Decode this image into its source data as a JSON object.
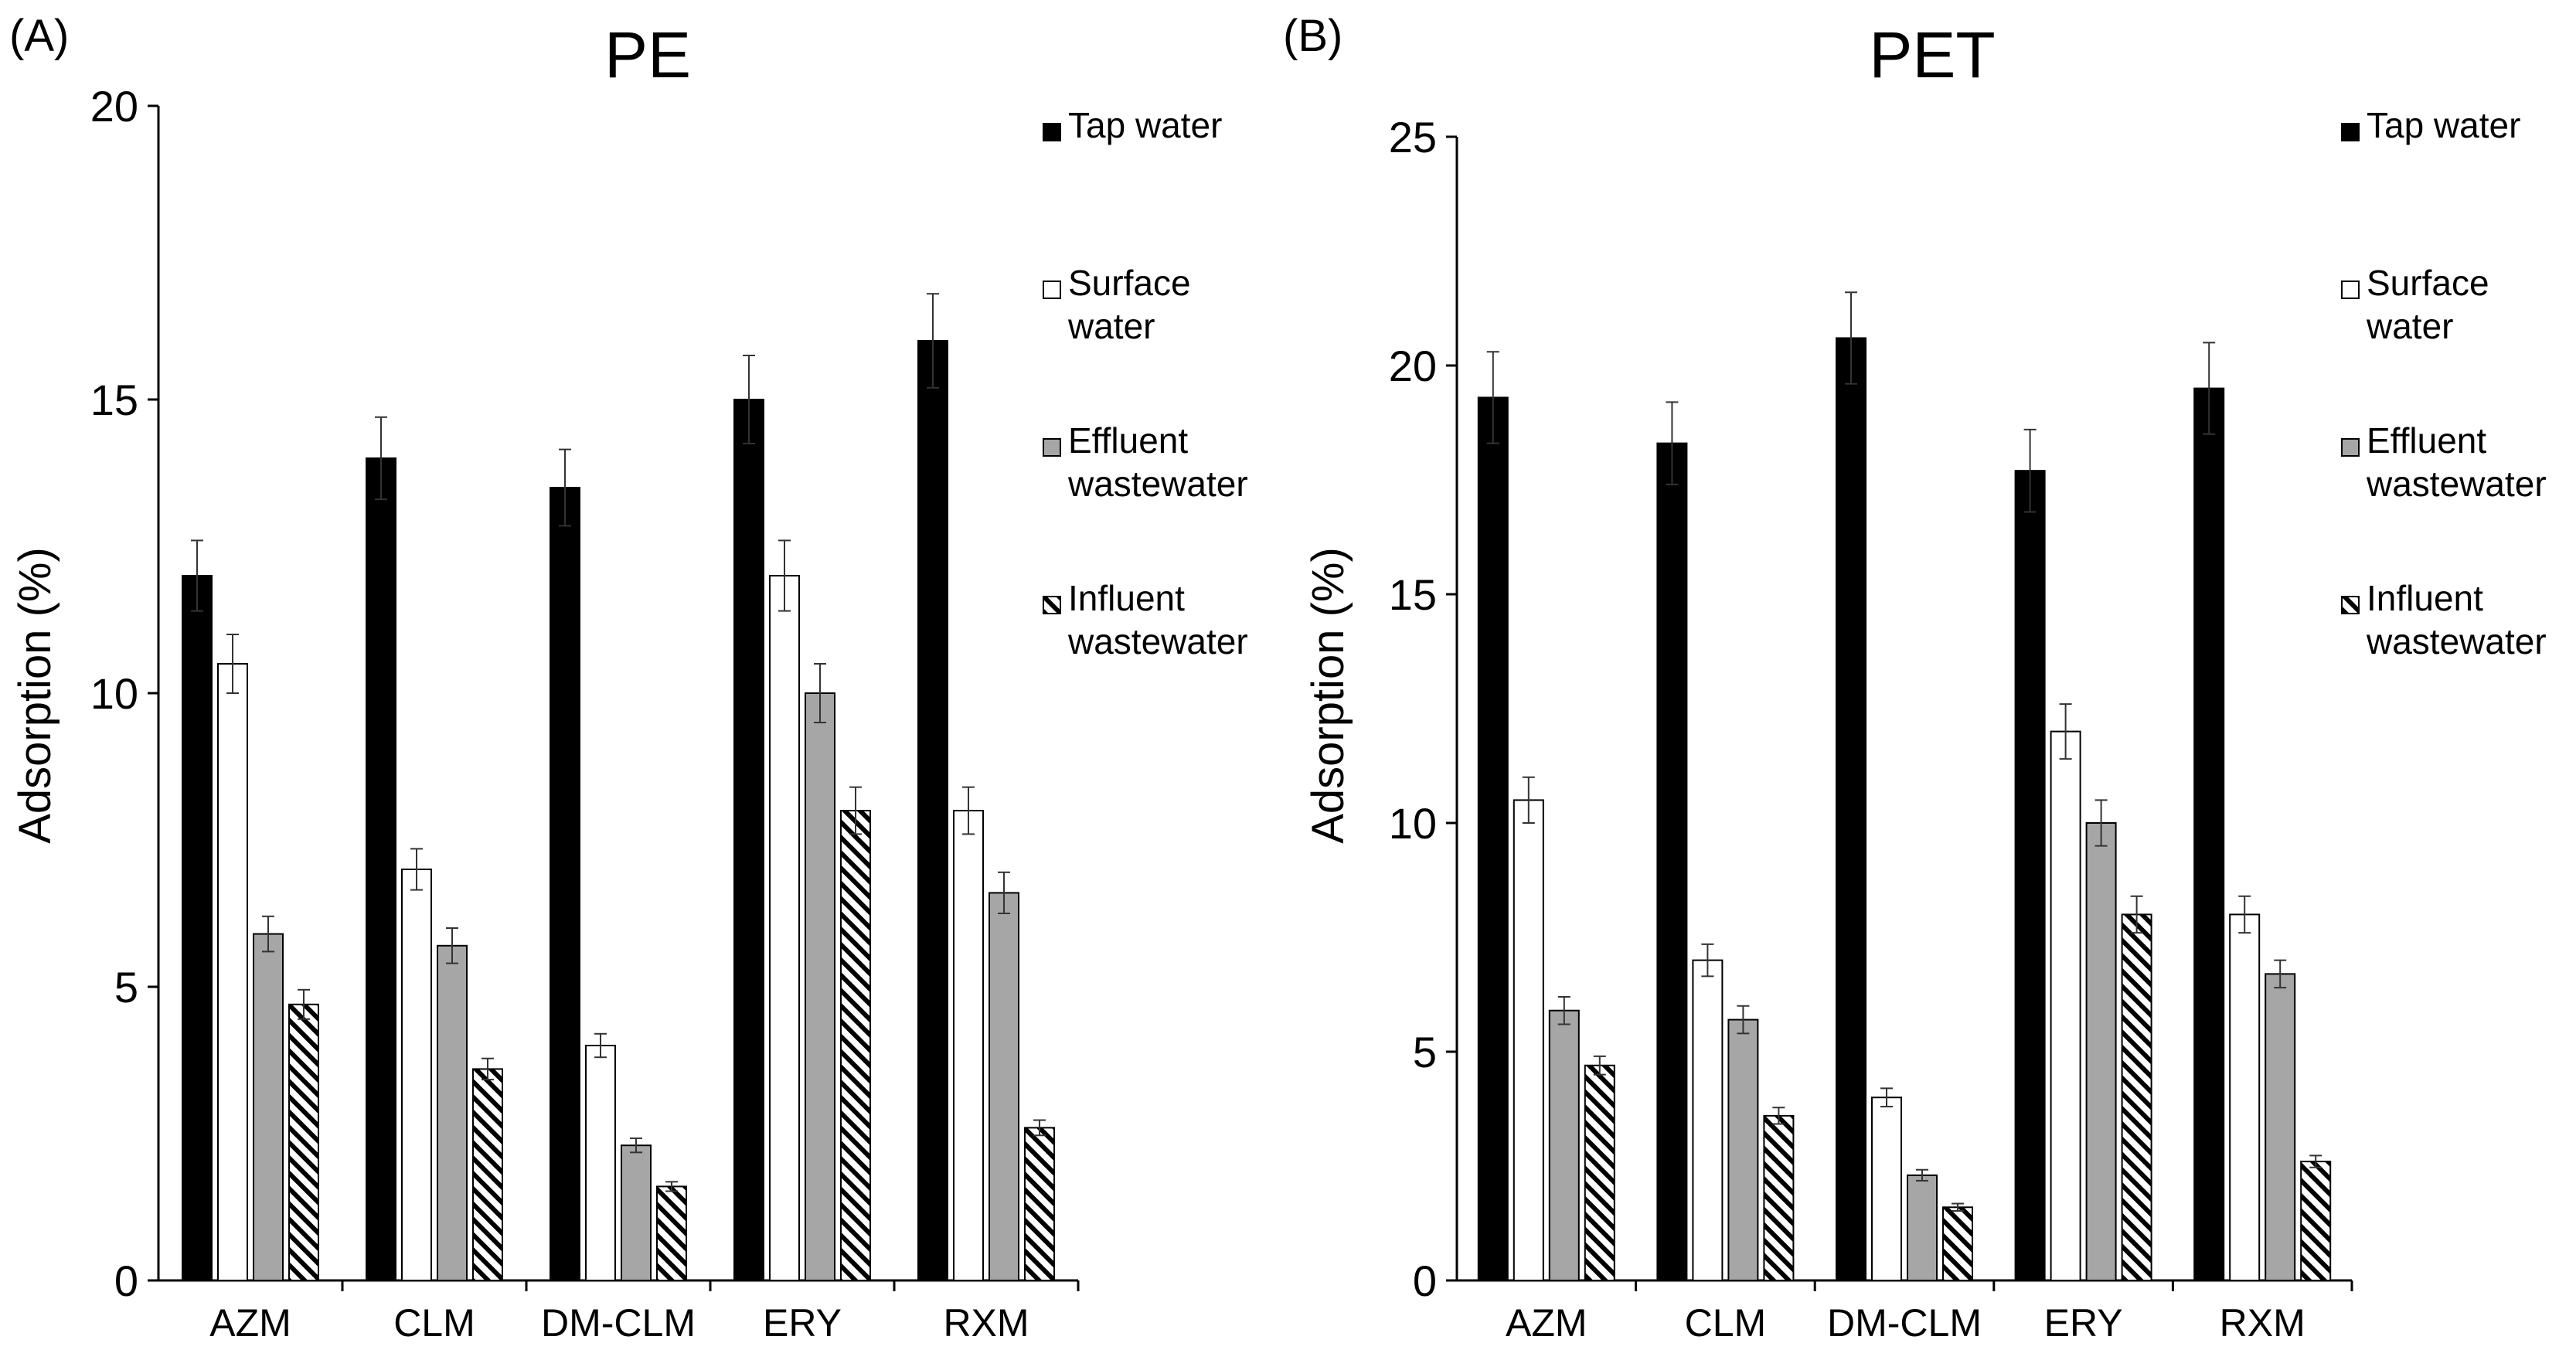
{
  "figure": {
    "background": "#ffffff"
  },
  "series_styles": [
    {
      "name": "Tap water",
      "legend_lines": [
        "Tap water"
      ],
      "fill": "#000000",
      "stroke": "#000000",
      "pattern": "solid"
    },
    {
      "name": "Surface water",
      "legend_lines": [
        "Surface",
        "water"
      ],
      "fill": "#ffffff",
      "stroke": "#000000",
      "pattern": "solid"
    },
    {
      "name": "Effluent wastewater",
      "legend_lines": [
        "Effluent",
        "wastewater"
      ],
      "fill": "#a6a6a6",
      "stroke": "#000000",
      "pattern": "solid"
    },
    {
      "name": "Influent wastewater",
      "legend_lines": [
        "Influent",
        "wastewater"
      ],
      "fill": "#ffffff",
      "stroke": "#000000",
      "pattern": "diagonal-hatch"
    }
  ],
  "chart_data": [
    {
      "panel_label": "(A)",
      "type": "bar",
      "title": "PE",
      "xlabel": "",
      "ylabel": "Adsorption (%)",
      "ylim": [
        0,
        20
      ],
      "yticks": [
        0,
        5,
        10,
        15,
        20
      ],
      "grid": false,
      "legend": "top-right",
      "categories": [
        "AZM",
        "CLM",
        "DM-CLM",
        "ERY",
        "RXM"
      ],
      "series": [
        {
          "name": "Tap water",
          "values": [
            12,
            14,
            13.5,
            15,
            16
          ],
          "errors": [
            0.6,
            0.7,
            0.65,
            0.75,
            0.8
          ]
        },
        {
          "name": "Surface water",
          "values": [
            10.5,
            7,
            4,
            12,
            8
          ],
          "errors": [
            0.5,
            0.35,
            0.2,
            0.6,
            0.4
          ]
        },
        {
          "name": "Effluent wastewater",
          "values": [
            5.9,
            5.7,
            2.3,
            10,
            6.6
          ],
          "errors": [
            0.3,
            0.3,
            0.12,
            0.5,
            0.35
          ]
        },
        {
          "name": "Influent wastewater",
          "values": [
            4.7,
            3.6,
            1.6,
            8,
            2.6
          ],
          "errors": [
            0.25,
            0.18,
            0.08,
            0.4,
            0.13
          ]
        }
      ]
    },
    {
      "panel_label": "(B)",
      "type": "bar",
      "title": "PET",
      "xlabel": "",
      "ylabel": "Adsorption (%)",
      "ylim": [
        0,
        25
      ],
      "yticks": [
        0,
        5,
        10,
        15,
        20,
        25
      ],
      "grid": false,
      "legend": "top-right",
      "categories": [
        "AZM",
        "CLM",
        "DM-CLM",
        "ERY",
        "RXM"
      ],
      "series": [
        {
          "name": "Tap water",
          "values": [
            19.3,
            18.3,
            20.6,
            17.7,
            19.5
          ],
          "errors": [
            1.0,
            0.9,
            1.0,
            0.9,
            1.0
          ]
        },
        {
          "name": "Surface water",
          "values": [
            10.5,
            7,
            4,
            12,
            8
          ],
          "errors": [
            0.5,
            0.35,
            0.2,
            0.6,
            0.4
          ]
        },
        {
          "name": "Effluent wastewater",
          "values": [
            5.9,
            5.7,
            2.3,
            10,
            6.7
          ],
          "errors": [
            0.3,
            0.3,
            0.12,
            0.5,
            0.3
          ]
        },
        {
          "name": "Influent wastewater",
          "values": [
            4.7,
            3.6,
            1.6,
            8,
            2.6
          ],
          "errors": [
            0.2,
            0.18,
            0.08,
            0.4,
            0.13
          ]
        }
      ]
    }
  ]
}
